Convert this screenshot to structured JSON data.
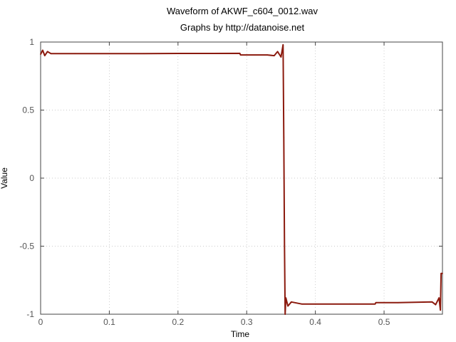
{
  "chart_data": {
    "type": "line",
    "title": "Waveform of AKWF_c604_0012.wav",
    "subtitle": "Graphs by http://datanoise.net",
    "xlabel": "Time",
    "ylabel": "Value",
    "xlim": [
      0,
      0.585
    ],
    "ylim": [
      -1,
      1
    ],
    "xticks": [
      0,
      0.1,
      0.2,
      0.3,
      0.4,
      0.5
    ],
    "xtick_labels": [
      "0",
      "0.1",
      "0.2",
      "0.3",
      "0.4",
      "0.5"
    ],
    "yticks": [
      -1,
      -0.5,
      0,
      0.5,
      1
    ],
    "ytick_labels": [
      "-1",
      "-0.5",
      "0",
      "0.5",
      "1"
    ],
    "grid": true,
    "series": [
      {
        "color": "#8b1a0e",
        "x": [
          0,
          0.003,
          0.006,
          0.01,
          0.015,
          0.05,
          0.1,
          0.15,
          0.2,
          0.25,
          0.29,
          0.291,
          0.33,
          0.34,
          0.345,
          0.35,
          0.353,
          0.354,
          0.355,
          0.356,
          0.357,
          0.36,
          0.365,
          0.38,
          0.4,
          0.45,
          0.487,
          0.488,
          0.52,
          0.57,
          0.575,
          0.58,
          0.582,
          0.583,
          0.585
        ],
        "y": [
          0.91,
          0.94,
          0.9,
          0.93,
          0.915,
          0.915,
          0.915,
          0.915,
          0.916,
          0.916,
          0.917,
          0.905,
          0.905,
          0.9,
          0.93,
          0.89,
          0.98,
          0.3,
          -0.5,
          -1.0,
          -0.88,
          -0.94,
          -0.91,
          -0.925,
          -0.925,
          -0.925,
          -0.925,
          -0.915,
          -0.915,
          -0.91,
          -0.93,
          -0.88,
          -0.97,
          -0.7,
          -0.7
        ]
      }
    ]
  }
}
